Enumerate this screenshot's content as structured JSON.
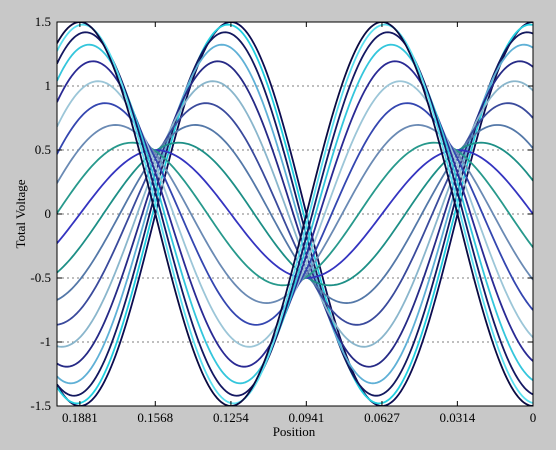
{
  "chart_data": {
    "type": "line",
    "title": "",
    "xlabel": "Position",
    "ylabel": "Total Voltage",
    "x_reversed": true,
    "xlim": [
      0.1976,
      0
    ],
    "ylim": [
      -1.5,
      1.5
    ],
    "x_ticks": [
      {
        "value": 0.1881,
        "label": "0.1881"
      },
      {
        "value": 0.1568,
        "label": "0.1568"
      },
      {
        "value": 0.1254,
        "label": "0.1254"
      },
      {
        "value": 0.0941,
        "label": "0.0941"
      },
      {
        "value": 0.0627,
        "label": "0.0627"
      },
      {
        "value": 0.0314,
        "label": "0.0314"
      },
      {
        "value": 0,
        "label": "0"
      }
    ],
    "y_ticks": [
      {
        "value": -1.5,
        "label": "-1.5"
      },
      {
        "value": -1,
        "label": "-1"
      },
      {
        "value": -0.5,
        "label": "-0.5"
      },
      {
        "value": 0,
        "label": "0"
      },
      {
        "value": 0.5,
        "label": "0.5"
      },
      {
        "value": 1,
        "label": "1"
      },
      {
        "value": 1.5,
        "label": "1.5"
      }
    ],
    "grid": {
      "horizontal": true,
      "vertical": false,
      "style": "dashed"
    },
    "legend": "none",
    "wave": {
      "model": "standing wave: V(x,t) = A*cos(2*pi*x/wavelength)*cos(phase) + B*sin(2*pi*x/wavelength)*sin(phase)",
      "wavelength": 0.1254,
      "A": 1.5,
      "B": 0.5,
      "x_start": 0,
      "x_end": 0.1976,
      "samples": 220
    },
    "series": [
      {
        "phase_deg": 0,
        "color": "#0c0c50"
      },
      {
        "phase_deg": 10,
        "color": "#22cfe0"
      },
      {
        "phase_deg": 20,
        "color": "#12185e"
      },
      {
        "phase_deg": 30,
        "color": "#5fb0d6"
      },
      {
        "phase_deg": 40,
        "color": "#262a86"
      },
      {
        "phase_deg": 50,
        "color": "#8ab6cc"
      },
      {
        "phase_deg": 60,
        "color": "#3a4a9c"
      },
      {
        "phase_deg": 70,
        "color": "#5478a8"
      },
      {
        "phase_deg": 80,
        "color": "#1d8f86"
      },
      {
        "phase_deg": 90,
        "color": "#3434c0"
      },
      {
        "phase_deg": 100,
        "color": "#27998c"
      },
      {
        "phase_deg": 110,
        "color": "#6a8ab4"
      },
      {
        "phase_deg": 120,
        "color": "#3446b0"
      },
      {
        "phase_deg": 130,
        "color": "#9cc6d8"
      },
      {
        "phase_deg": 140,
        "color": "#2a2a94"
      },
      {
        "phase_deg": 150,
        "color": "#34c6dc"
      },
      {
        "phase_deg": 160,
        "color": "#141862"
      },
      {
        "phase_deg": 170,
        "color": "#5ae0f0"
      },
      {
        "phase_deg": 180,
        "color": "#0a0a40"
      }
    ],
    "colors": {
      "background": "#c8c8c8",
      "plot_area": "#ffffff",
      "grid": "#555555",
      "axes": "#000000"
    }
  }
}
